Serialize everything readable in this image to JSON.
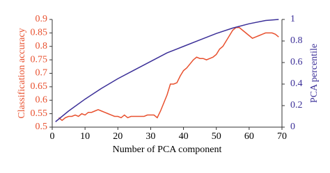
{
  "chart_data": {
    "type": "line",
    "xlabel": "Number of PCA component",
    "ylabel": "Classification accuracy",
    "y2label": "PCA percentile",
    "xlim": [
      0,
      70
    ],
    "xticks": [
      0,
      10,
      20,
      30,
      40,
      50,
      60,
      70
    ],
    "ylim": [
      0.5,
      0.9
    ],
    "yticks": [
      0.5,
      0.55,
      0.6,
      0.65,
      0.7,
      0.75,
      0.8,
      0.85,
      0.9
    ],
    "y2lim": [
      0,
      1
    ],
    "y2ticks": [
      0,
      0.2,
      0.4,
      0.6,
      0.8,
      1
    ],
    "ycolor": "#e8502e",
    "y2color": "#3b2f98",
    "series": [
      {
        "color": "#e8502e",
        "x": [
          2,
          3,
          4,
          5,
          6,
          7,
          8,
          9,
          10,
          11,
          12,
          13,
          14,
          15,
          16,
          17,
          18,
          19,
          20,
          21,
          22,
          23,
          24,
          25,
          26,
          27,
          28,
          29,
          30,
          31,
          32,
          33,
          34,
          35,
          36,
          37,
          38,
          39,
          40,
          41,
          42,
          43,
          44,
          45,
          46,
          47,
          48,
          49,
          50,
          51,
          52,
          53,
          54,
          55,
          56,
          57,
          58,
          59,
          60,
          61,
          62,
          63,
          64,
          65,
          66,
          67,
          68,
          69
        ],
        "values": [
          0.535,
          0.525,
          0.535,
          0.54,
          0.54,
          0.545,
          0.54,
          0.55,
          0.545,
          0.555,
          0.555,
          0.56,
          0.565,
          0.56,
          0.555,
          0.55,
          0.545,
          0.54,
          0.54,
          0.535,
          0.545,
          0.535,
          0.54,
          0.54,
          0.54,
          0.54,
          0.54,
          0.545,
          0.545,
          0.545,
          0.535,
          0.56,
          0.59,
          0.62,
          0.66,
          0.66,
          0.665,
          0.69,
          0.71,
          0.72,
          0.735,
          0.75,
          0.76,
          0.755,
          0.755,
          0.75,
          0.755,
          0.76,
          0.77,
          0.79,
          0.8,
          0.82,
          0.84,
          0.86,
          0.87,
          0.87,
          0.86,
          0.85,
          0.84,
          0.83,
          0.835,
          0.84,
          0.845,
          0.85,
          0.85,
          0.85,
          0.845,
          0.835
        ]
      },
      {
        "color": "#3b2f98",
        "axis": "y2",
        "x": [
          1,
          5,
          10,
          15,
          20,
          25,
          30,
          35,
          40,
          45,
          50,
          55,
          60,
          65,
          69
        ],
        "values": [
          0.05,
          0.15,
          0.26,
          0.36,
          0.45,
          0.53,
          0.61,
          0.69,
          0.75,
          0.81,
          0.87,
          0.92,
          0.96,
          0.99,
          1
        ]
      }
    ]
  }
}
